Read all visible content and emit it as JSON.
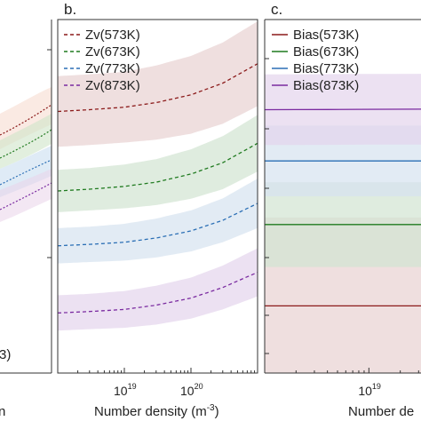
{
  "panels": [
    {
      "letter": "b."
    },
    {
      "letter": "c."
    }
  ],
  "colors": {
    "573K": "#8b1a1a",
    "673K": "#1f7a1f",
    "773K": "#2b6fb5",
    "873K": "#7a2aa0"
  },
  "chart_data": [
    {
      "type": "line",
      "panel": "b.",
      "xlabel": "Number density (m",
      "xlabel_unit_exp": "-3",
      "xlabel_close": ")",
      "xscale": "log",
      "xlim": [
        1e+18,
        1e+21
      ],
      "xticks": [
        {
          "base": "10",
          "exp": "19",
          "value": 1e+19
        },
        {
          "base": "10",
          "exp": "20",
          "value": 1e+20
        }
      ],
      "ylim": [
        0,
        1
      ],
      "legend_position": "top-left",
      "band": "shaded uncertainty band around each line",
      "x": [
        1e+18,
        3e+18,
        1e+19,
        3e+19,
        1e+20,
        3e+20,
        1e+21
      ],
      "series": [
        {
          "name": "Zv(573K)",
          "color": "#8b1a1a",
          "style": "dashed",
          "values": [
            0.74,
            0.745,
            0.752,
            0.765,
            0.787,
            0.82,
            0.875
          ],
          "band": [
            0.1,
            0.1,
            0.1,
            0.105,
            0.11,
            0.115,
            0.12
          ]
        },
        {
          "name": "Zv(673K)",
          "color": "#1f7a1f",
          "style": "dashed",
          "values": [
            0.515,
            0.52,
            0.528,
            0.54,
            0.563,
            0.595,
            0.65
          ],
          "band": [
            0.06,
            0.06,
            0.062,
            0.065,
            0.07,
            0.075,
            0.08
          ]
        },
        {
          "name": "Zv(773K)",
          "color": "#2b6fb5",
          "style": "dashed",
          "values": [
            0.36,
            0.364,
            0.37,
            0.382,
            0.402,
            0.432,
            0.48
          ],
          "band": [
            0.05,
            0.05,
            0.052,
            0.055,
            0.058,
            0.062,
            0.07
          ]
        },
        {
          "name": "Zv(873K)",
          "color": "#7a2aa0",
          "style": "dashed",
          "values": [
            0.17,
            0.174,
            0.18,
            0.192,
            0.212,
            0.242,
            0.285
          ],
          "band": [
            0.05,
            0.05,
            0.052,
            0.055,
            0.058,
            0.062,
            0.068
          ]
        }
      ]
    },
    {
      "type": "line",
      "panel": "c.",
      "xlabel": "Number de",
      "xscale": "log",
      "xlim": [
        1e+18,
        1e+21
      ],
      "xticks": [
        {
          "base": "10",
          "exp": "19",
          "value": 1e+19
        }
      ],
      "ylim": [
        0,
        1
      ],
      "legend_position": "top-left",
      "band": "shaded uncertainty band around each line",
      "x": [
        1e+18,
        1e+21
      ],
      "series": [
        {
          "name": "Bias(573K)",
          "color": "#8b1a1a",
          "style": "solid",
          "values": [
            0.19,
            0.19
          ],
          "band": [
            0.25,
            0.25
          ]
        },
        {
          "name": "Bias(673K)",
          "color": "#1f7a1f",
          "style": "solid",
          "values": [
            0.42,
            0.42
          ],
          "band": [
            0.12,
            0.12
          ]
        },
        {
          "name": "Bias(773K)",
          "color": "#2b6fb5",
          "style": "solid",
          "values": [
            0.6,
            0.6
          ],
          "band": [
            0.1,
            0.1
          ]
        },
        {
          "name": "Bias(873K)",
          "color": "#7a2aa0",
          "style": "solid",
          "values": [
            0.745,
            0.748
          ],
          "band": [
            0.1,
            0.1
          ]
        }
      ]
    }
  ]
}
